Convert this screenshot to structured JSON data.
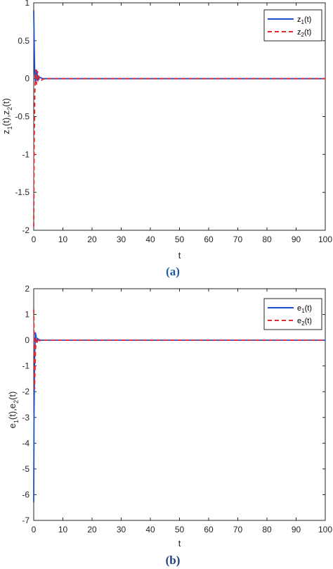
{
  "chart_data": [
    {
      "type": "line",
      "panel_label": "(a)",
      "xlabel": "t",
      "ylabel": "z₁(t),z₂(t)",
      "xlim": [
        0,
        100
      ],
      "ylim": [
        -2,
        1
      ],
      "xticks": [
        "0",
        "10",
        "20",
        "30",
        "40",
        "50",
        "60",
        "70",
        "80",
        "90",
        "100"
      ],
      "yticks": [
        "1",
        "0.5",
        "0",
        "-0.5",
        "-1",
        "-1.5",
        "-2"
      ],
      "grid": false,
      "legend_position": "top-right",
      "series": [
        {
          "name": "z₁(t)",
          "color": "#1f4fd1",
          "style": "solid",
          "x": [
            0,
            0.15,
            0.35,
            0.6,
            0.9,
            1.2,
            1.5,
            2,
            2.5,
            3,
            4,
            5,
            100
          ],
          "y": [
            0.9,
            0.5,
            0.08,
            -0.05,
            0.12,
            0.05,
            -0.02,
            0.02,
            0.01,
            0,
            0,
            0,
            0
          ]
        },
        {
          "name": "z₂(t)",
          "color": "#e8262b",
          "style": "dashed",
          "x": [
            0,
            0.15,
            0.4,
            0.7,
            1.0,
            1.3,
            1.6,
            2,
            2.5,
            3,
            4,
            5,
            100
          ],
          "y": [
            -1.95,
            -0.9,
            -0.15,
            0.12,
            -0.08,
            0.1,
            0.04,
            -0.02,
            -0.03,
            -0.01,
            0,
            0,
            0
          ]
        }
      ]
    },
    {
      "type": "line",
      "panel_label": "(b)",
      "xlabel": "t",
      "ylabel": "e₁(t),e₂(t)",
      "xlim": [
        0,
        100
      ],
      "ylim": [
        -7,
        2
      ],
      "xticks": [
        "0",
        "10",
        "20",
        "30",
        "40",
        "50",
        "60",
        "70",
        "80",
        "90",
        "100"
      ],
      "yticks": [
        "2",
        "1",
        "0",
        "-1",
        "-2",
        "-3",
        "-4",
        "-5",
        "-6",
        "-7"
      ],
      "grid": false,
      "legend_position": "top-right",
      "series": [
        {
          "name": "e₁(t)",
          "color": "#1f4fd1",
          "style": "solid",
          "x": [
            0,
            0.1,
            0.3,
            0.55,
            0.8,
            1.1,
            1.4,
            1.8,
            2.5,
            3.5,
            100
          ],
          "y": [
            -6.3,
            -3.0,
            -0.8,
            0.3,
            0.15,
            -0.1,
            0.06,
            0.02,
            0,
            0,
            0
          ]
        },
        {
          "name": "e₂(t)",
          "color": "#e8262b",
          "style": "dashed",
          "x": [
            0,
            0.12,
            0.3,
            0.55,
            0.8,
            1.1,
            1.4,
            1.8,
            2.5,
            3.5,
            100
          ],
          "y": [
            1.2,
            0.3,
            -1.9,
            -0.6,
            0.1,
            -0.1,
            0.05,
            -0.02,
            0,
            0,
            0
          ]
        }
      ]
    }
  ]
}
